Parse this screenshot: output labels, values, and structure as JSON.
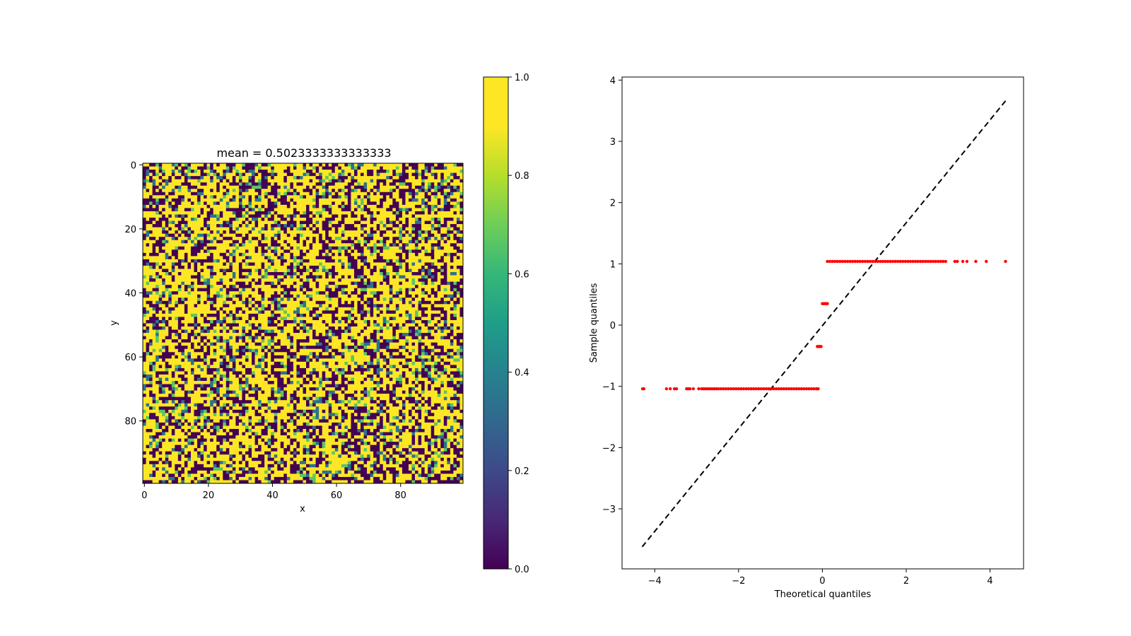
{
  "figure": {
    "background": "#ffffff"
  },
  "chart_data": [
    {
      "type": "heatmap",
      "title": "mean = 0.5023333333333333",
      "xlabel": "x",
      "ylabel": "y",
      "xlim": [
        0,
        100
      ],
      "ylim": [
        100,
        0
      ],
      "y_inverted": true,
      "grid_size": [
        100,
        100
      ],
      "cell_values": [
        0,
        0.333,
        0.667,
        1
      ],
      "cell_value_probabilities": [
        0.34,
        0.07,
        0.06,
        0.53
      ],
      "mean": 0.5023333333333333,
      "xticks": [
        0,
        20,
        40,
        60,
        80
      ],
      "yticks": [
        0,
        20,
        40,
        60,
        80
      ],
      "colormap": "viridis",
      "grid": false,
      "colorbar": {
        "range": [
          0,
          1
        ],
        "ticks": [
          "0.0",
          "0.2",
          "0.4",
          "0.6",
          "0.8",
          "1.0"
        ],
        "stops": [
          {
            "value": 0.0,
            "color": "#440154"
          },
          {
            "value": 0.1,
            "color": "#482878"
          },
          {
            "value": 0.2,
            "color": "#3e4a89"
          },
          {
            "value": 0.3,
            "color": "#31688e"
          },
          {
            "value": 0.4,
            "color": "#26828e"
          },
          {
            "value": 0.5,
            "color": "#1f9e89"
          },
          {
            "value": 0.6,
            "color": "#35b779"
          },
          {
            "value": 0.7,
            "color": "#6ece58"
          },
          {
            "value": 0.8,
            "color": "#b5de2b"
          },
          {
            "value": 0.9,
            "color": "#fde725"
          },
          {
            "value": 1.0,
            "color": "#fde725"
          }
        ]
      }
    },
    {
      "type": "scatter",
      "title": "",
      "xlabel": "Theoretical quantiles",
      "ylabel": "Sample quantiles",
      "xlim": [
        -4.78,
        4.8
      ],
      "ylim": [
        -3.98,
        4.05
      ],
      "xticks": [
        -4,
        -2,
        0,
        2,
        4
      ],
      "yticks": [
        -3,
        -2,
        -1,
        0,
        1,
        2,
        3,
        4
      ],
      "grid": false,
      "reference_line": {
        "style": "dashed",
        "color": "#000000",
        "x": [
          -4.3,
          4.37
        ],
        "y": [
          -3.62,
          3.66
        ]
      },
      "series": [
        {
          "color": "#ff0000",
          "points": [
            [
              -4.29,
              -1.04
            ],
            [
              -4.26,
              -1.04
            ],
            [
              -3.72,
              -1.04
            ],
            [
              -3.63,
              -1.04
            ],
            [
              -3.53,
              -1.04
            ],
            [
              -3.48,
              -1.04
            ],
            [
              -3.24,
              -1.04
            ],
            [
              -3.2,
              -1.04
            ],
            [
              -3.16,
              -1.04
            ],
            [
              -3.08,
              -1.04
            ],
            [
              -2.95,
              -1.04
            ],
            [
              -2.88,
              -1.04
            ],
            [
              -2.83,
              -1.04
            ],
            [
              -2.78,
              -1.04
            ],
            [
              -2.73,
              -1.04
            ],
            [
              -2.68,
              -1.04
            ],
            [
              -2.63,
              -1.04
            ],
            [
              -2.58,
              -1.04
            ],
            [
              -2.53,
              -1.04
            ],
            [
              -2.48,
              -1.04
            ],
            [
              -2.42,
              -1.04
            ],
            [
              -2.36,
              -1.04
            ],
            [
              -2.3,
              -1.04
            ],
            [
              -2.24,
              -1.04
            ],
            [
              -2.18,
              -1.04
            ],
            [
              -2.12,
              -1.04
            ],
            [
              -2.06,
              -1.04
            ],
            [
              -2.0,
              -1.04
            ],
            [
              -1.94,
              -1.04
            ],
            [
              -1.88,
              -1.04
            ],
            [
              -1.82,
              -1.04
            ],
            [
              -1.76,
              -1.04
            ],
            [
              -1.7,
              -1.04
            ],
            [
              -1.64,
              -1.04
            ],
            [
              -1.58,
              -1.04
            ],
            [
              -1.52,
              -1.04
            ],
            [
              -1.46,
              -1.04
            ],
            [
              -1.4,
              -1.04
            ],
            [
              -1.34,
              -1.04
            ],
            [
              -1.28,
              -1.04
            ],
            [
              -1.22,
              -1.04
            ],
            [
              -1.16,
              -1.04
            ],
            [
              -1.1,
              -1.04
            ],
            [
              -1.04,
              -1.04
            ],
            [
              -0.98,
              -1.04
            ],
            [
              -0.92,
              -1.04
            ],
            [
              -0.86,
              -1.04
            ],
            [
              -0.8,
              -1.04
            ],
            [
              -0.74,
              -1.04
            ],
            [
              -0.68,
              -1.04
            ],
            [
              -0.62,
              -1.04
            ],
            [
              -0.56,
              -1.04
            ],
            [
              -0.5,
              -1.04
            ],
            [
              -0.44,
              -1.04
            ],
            [
              -0.38,
              -1.04
            ],
            [
              -0.32,
              -1.04
            ],
            [
              -0.26,
              -1.04
            ],
            [
              -0.2,
              -1.04
            ],
            [
              -0.14,
              -1.04
            ],
            [
              -0.1,
              -1.04
            ],
            [
              -0.12,
              -0.35
            ],
            [
              -0.09,
              -0.35
            ],
            [
              -0.06,
              -0.35
            ],
            [
              -0.03,
              -0.35
            ],
            [
              0.0,
              0.35
            ],
            [
              0.03,
              0.35
            ],
            [
              0.06,
              0.35
            ],
            [
              0.09,
              0.35
            ],
            [
              0.12,
              0.35
            ],
            [
              0.12,
              1.04
            ],
            [
              0.18,
              1.04
            ],
            [
              0.24,
              1.04
            ],
            [
              0.3,
              1.04
            ],
            [
              0.36,
              1.04
            ],
            [
              0.42,
              1.04
            ],
            [
              0.48,
              1.04
            ],
            [
              0.54,
              1.04
            ],
            [
              0.6,
              1.04
            ],
            [
              0.66,
              1.04
            ],
            [
              0.72,
              1.04
            ],
            [
              0.78,
              1.04
            ],
            [
              0.84,
              1.04
            ],
            [
              0.9,
              1.04
            ],
            [
              0.96,
              1.04
            ],
            [
              1.02,
              1.04
            ],
            [
              1.08,
              1.04
            ],
            [
              1.14,
              1.04
            ],
            [
              1.2,
              1.04
            ],
            [
              1.26,
              1.04
            ],
            [
              1.32,
              1.04
            ],
            [
              1.38,
              1.04
            ],
            [
              1.44,
              1.04
            ],
            [
              1.5,
              1.04
            ],
            [
              1.56,
              1.04
            ],
            [
              1.62,
              1.04
            ],
            [
              1.68,
              1.04
            ],
            [
              1.74,
              1.04
            ],
            [
              1.8,
              1.04
            ],
            [
              1.86,
              1.04
            ],
            [
              1.92,
              1.04
            ],
            [
              1.98,
              1.04
            ],
            [
              2.04,
              1.04
            ],
            [
              2.1,
              1.04
            ],
            [
              2.16,
              1.04
            ],
            [
              2.22,
              1.04
            ],
            [
              2.28,
              1.04
            ],
            [
              2.34,
              1.04
            ],
            [
              2.4,
              1.04
            ],
            [
              2.46,
              1.04
            ],
            [
              2.52,
              1.04
            ],
            [
              2.58,
              1.04
            ],
            [
              2.64,
              1.04
            ],
            [
              2.7,
              1.04
            ],
            [
              2.76,
              1.04
            ],
            [
              2.82,
              1.04
            ],
            [
              2.88,
              1.04
            ],
            [
              2.94,
              1.04
            ],
            [
              3.16,
              1.04
            ],
            [
              3.22,
              1.04
            ],
            [
              3.35,
              1.04
            ],
            [
              3.45,
              1.04
            ],
            [
              3.66,
              1.04
            ],
            [
              3.91,
              1.04
            ],
            [
              4.37,
              1.04
            ]
          ]
        }
      ]
    }
  ]
}
